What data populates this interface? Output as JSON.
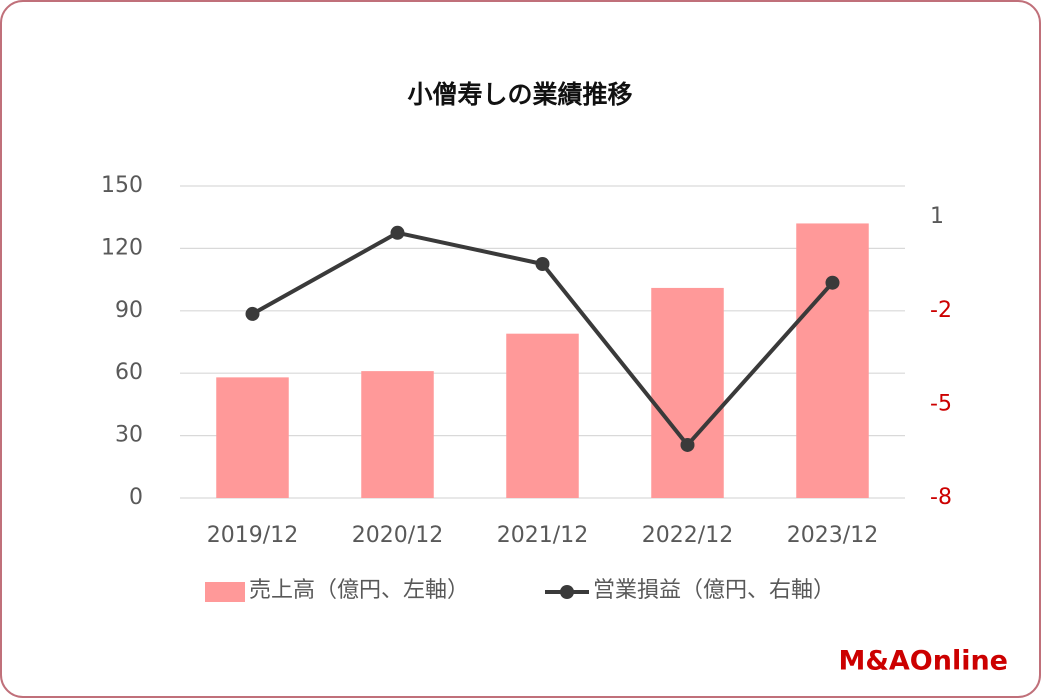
{
  "chart_data": {
    "type": "bar-line",
    "title": "小僧寿しの業績推移",
    "categories": [
      "2019/12",
      "2020/12",
      "2021/12",
      "2022/12",
      "2023/12"
    ],
    "series": [
      {
        "name": "売上高（億円、左軸）",
        "type": "bar",
        "color": "#ff9999",
        "values": [
          58,
          61,
          79,
          101,
          132
        ]
      },
      {
        "name": "営業損益（億円、右軸）",
        "type": "line",
        "axis": "y2",
        "color": "#3a3a3a",
        "values": [
          -2.1,
          0.5,
          -0.5,
          -6.3,
          -1.1
        ]
      }
    ],
    "ylim": [
      0,
      150
    ],
    "yticks": [
      0,
      30,
      60,
      90,
      120,
      150
    ],
    "y2lim": [
      -8,
      2
    ],
    "y2ticks": [
      -8,
      -5,
      -2,
      1
    ],
    "negative_color": "#cc0000",
    "grid": true,
    "legend": "bottom"
  },
  "logo": "M&AOnline"
}
